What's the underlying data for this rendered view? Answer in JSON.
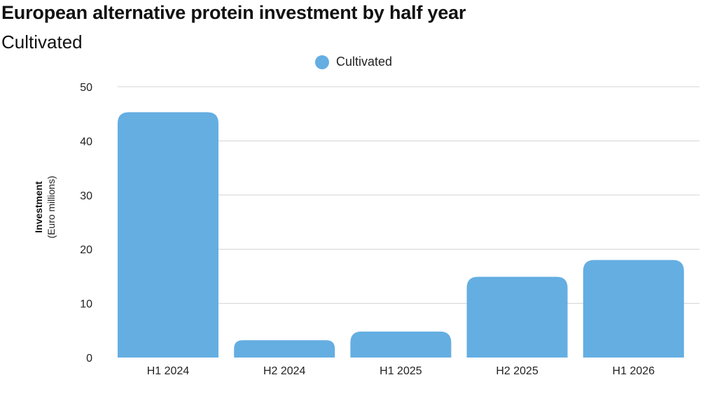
{
  "colors": {
    "series": "#64aee2",
    "grid": "#d3d3d3"
  },
  "chart_data": {
    "type": "bar",
    "title": "European alternative protein investment by half year",
    "subtitle": "Cultivated",
    "ylabel": "Investment",
    "ylabel_unit": "(Euro millions)",
    "categories": [
      "H1 2024",
      "H2 2024",
      "H1 2025",
      "H2 2025",
      "H1 2026"
    ],
    "series": [
      {
        "name": "Cultivated",
        "values": [
          45.3,
          3.2,
          4.8,
          14.9,
          18.0
        ]
      }
    ],
    "ylim": [
      0,
      50
    ],
    "yticks": [
      0,
      10,
      20,
      30,
      40,
      50
    ],
    "grid": true,
    "legend": "top-center"
  }
}
